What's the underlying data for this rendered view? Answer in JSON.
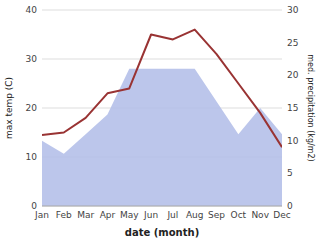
{
  "chart_data": {
    "type": "line",
    "categories": [
      "Jan",
      "Feb",
      "Mar",
      "Apr",
      "May",
      "Jun",
      "Jul",
      "Aug",
      "Sep",
      "Oct",
      "Nov",
      "Dec"
    ],
    "series": [
      {
        "type": "area",
        "axis": "y2",
        "color": "#b0bce8",
        "values": [
          10,
          8,
          11,
          14,
          21,
          21,
          21,
          21,
          16,
          11,
          15,
          11
        ]
      },
      {
        "type": "line",
        "color": "#993333",
        "values": [
          14.5,
          15,
          18,
          23,
          24,
          35,
          34,
          36,
          31,
          25,
          19,
          12
        ]
      }
    ],
    "xlabel": "date (month)",
    "ylabel": "max temp (C)",
    "y2label": "med. precipitation (kg/m2)",
    "ylim": [
      0,
      40
    ],
    "yticks": [
      0,
      10,
      20,
      30,
      40
    ],
    "y2lim": [
      0,
      30
    ],
    "y2ticks": [
      0,
      5,
      10,
      15,
      20,
      25,
      30
    ],
    "grid": true
  }
}
